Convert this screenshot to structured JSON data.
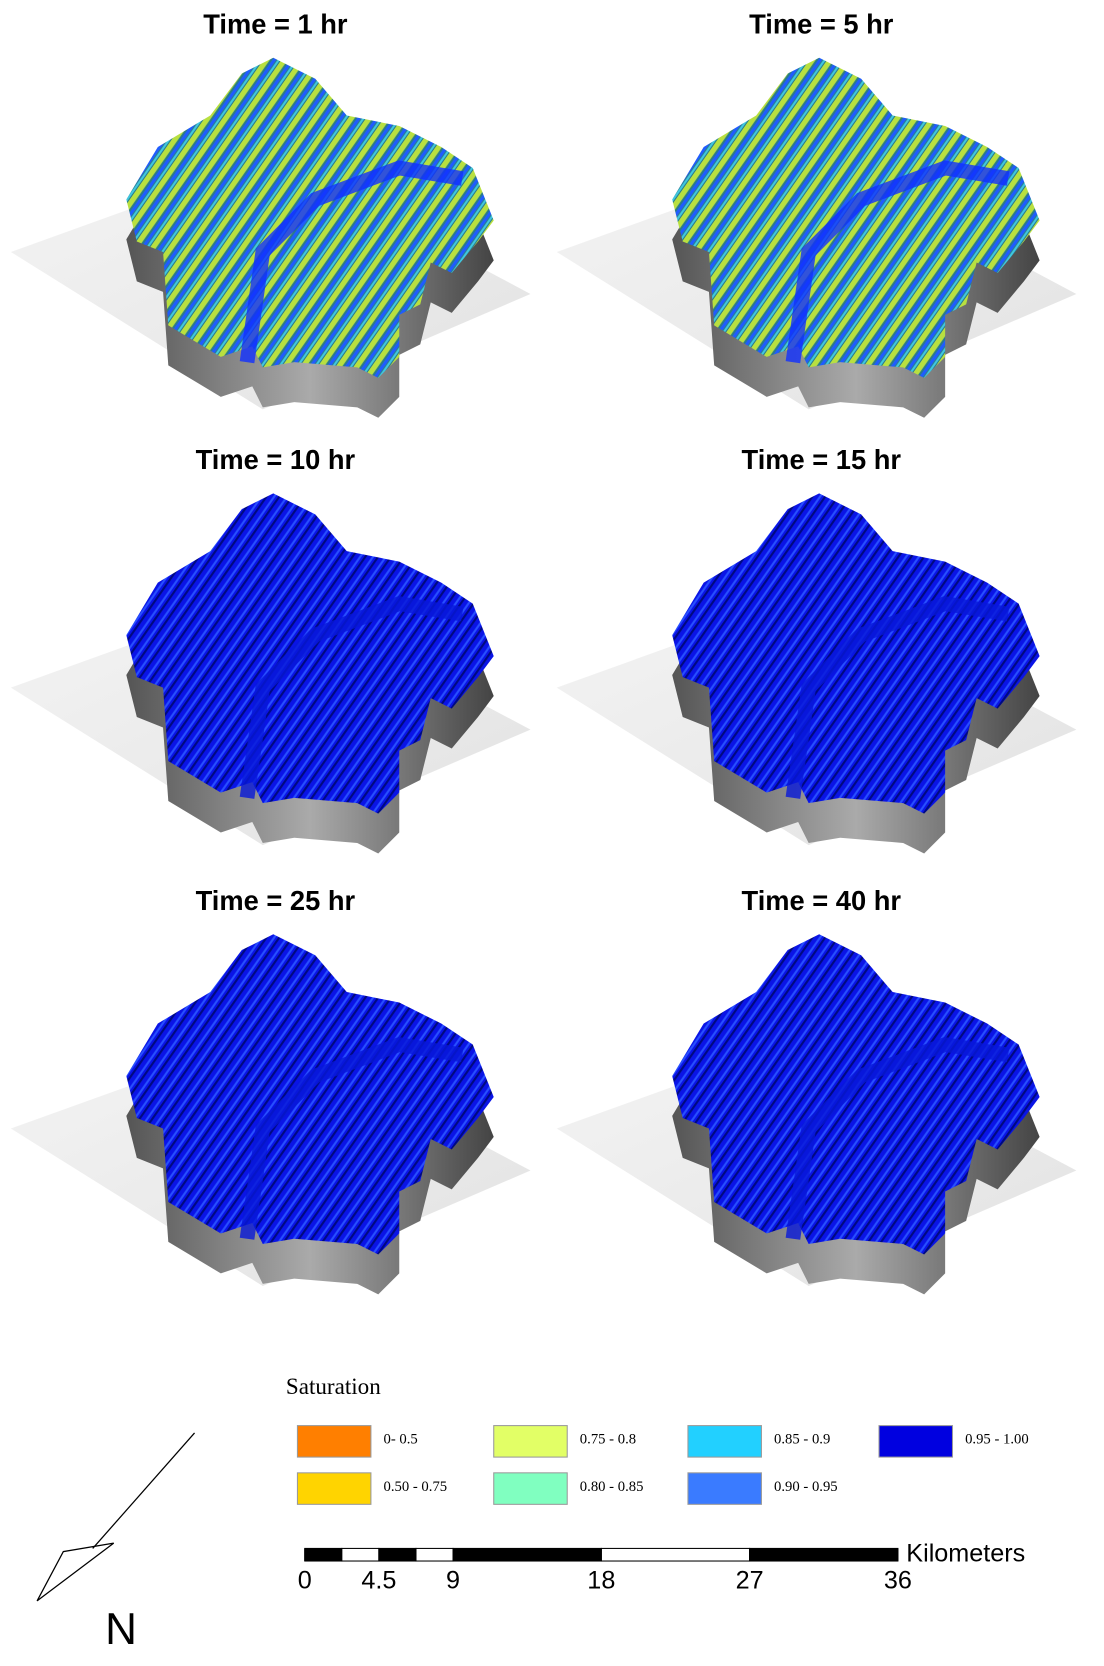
{
  "panels": [
    {
      "title": "Time = 1 hr"
    },
    {
      "title": "Time = 5 hr"
    },
    {
      "title": "Time = 10 hr"
    },
    {
      "title": "Time = 15 hr"
    },
    {
      "title": "Time = 25 hr"
    },
    {
      "title": "Time = 40 hr"
    }
  ],
  "legend": {
    "title": "Saturation",
    "items": [
      {
        "label": "0- 0.5",
        "color": "#ff7f00"
      },
      {
        "label": "0.50 - 0.75",
        "color": "#ffd400"
      },
      {
        "label": "0.75 - 0.8",
        "color": "#e2ff66"
      },
      {
        "label": "0.80 - 0.85",
        "color": "#80ffc0"
      },
      {
        "label": "0.85 - 0.9",
        "color": "#22d0ff"
      },
      {
        "label": "0.90 - 0.95",
        "color": "#3a7bff"
      },
      {
        "label": "0.95 - 1.00",
        "color": "#0000e0"
      }
    ]
  },
  "scale_bar": {
    "ticks": [
      0,
      4.5,
      9,
      18,
      27,
      36
    ],
    "unit": "Kilometers"
  },
  "north_arrow": {
    "label": "N"
  }
}
